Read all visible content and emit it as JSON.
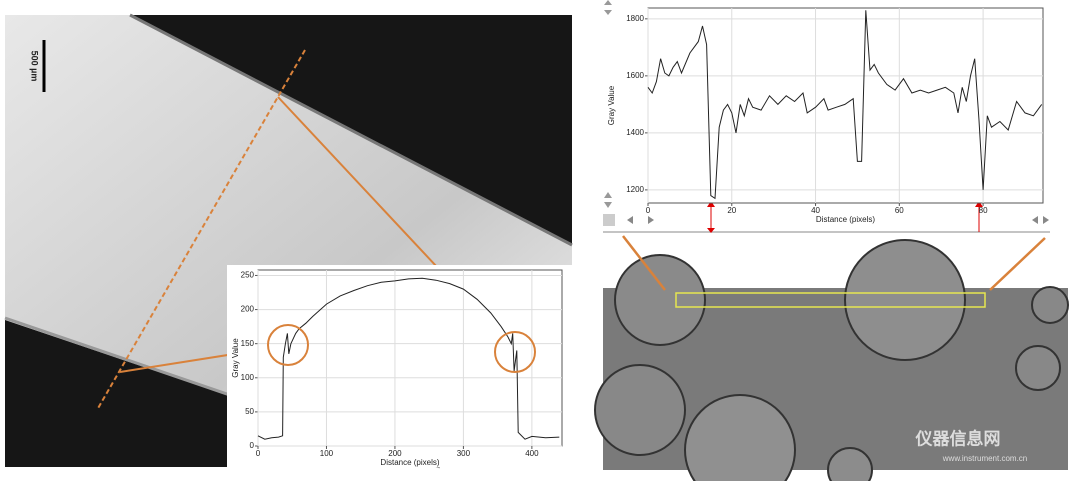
{
  "chart_data": [
    {
      "type": "line",
      "x_label": "Distance (pixels)",
      "y_label": "Gray Value",
      "color": "#222222",
      "grid": true,
      "x": [
        0,
        10,
        20,
        30,
        36,
        37,
        40,
        43,
        45,
        48,
        55,
        60,
        70,
        80,
        100,
        120,
        140,
        160,
        180,
        200,
        220,
        240,
        260,
        280,
        300,
        320,
        340,
        355,
        365,
        370,
        372,
        374,
        378,
        380,
        390,
        400,
        420,
        440
      ],
      "values": [
        15,
        10,
        12,
        13,
        15,
        130,
        150,
        165,
        135,
        150,
        165,
        172,
        180,
        190,
        208,
        220,
        228,
        235,
        240,
        242,
        245,
        246,
        243,
        238,
        230,
        215,
        195,
        175,
        160,
        150,
        165,
        110,
        140,
        20,
        10,
        14,
        12,
        13
      ],
      "xlim": [
        0,
        444
      ],
      "ylim": [
        0,
        258
      ],
      "xticks": [
        0,
        100,
        200,
        300,
        400
      ],
      "yticks": [
        0,
        50,
        100,
        150,
        200,
        250
      ]
    },
    {
      "type": "line",
      "x_label": "Distance (pixels)",
      "y_label": "Gray Value",
      "color": "#222222",
      "grid": true,
      "x": [
        0,
        1,
        2,
        3,
        4,
        5,
        6,
        7,
        8,
        10,
        12,
        13,
        14,
        15,
        16,
        17,
        18,
        19,
        20,
        21,
        22,
        23,
        24,
        25,
        27,
        29,
        31,
        33,
        35,
        37,
        38,
        40,
        42,
        43,
        45,
        47,
        49,
        50,
        51,
        52,
        53,
        54,
        55,
        57,
        59,
        61,
        63,
        65,
        67,
        69,
        71,
        73,
        74,
        75,
        76,
        77,
        78,
        79,
        80,
        81,
        82,
        84,
        86,
        88,
        90,
        92,
        94
      ],
      "values": [
        1560,
        1540,
        1580,
        1660,
        1610,
        1600,
        1630,
        1650,
        1610,
        1680,
        1720,
        1775,
        1710,
        1180,
        1170,
        1420,
        1480,
        1500,
        1470,
        1400,
        1500,
        1460,
        1520,
        1490,
        1480,
        1530,
        1500,
        1530,
        1510,
        1540,
        1470,
        1490,
        1520,
        1480,
        1490,
        1500,
        1520,
        1300,
        1300,
        1830,
        1620,
        1640,
        1610,
        1570,
        1550,
        1590,
        1540,
        1550,
        1540,
        1550,
        1560,
        1540,
        1470,
        1560,
        1510,
        1600,
        1660,
        1450,
        1200,
        1460,
        1420,
        1440,
        1410,
        1510,
        1470,
        1460,
        1500
      ],
      "xlim": [
        0,
        94.3
      ],
      "ylim": [
        1154,
        1838
      ],
      "xticks": [
        0,
        20,
        40,
        60,
        80
      ],
      "yticks": [
        1200,
        1400,
        1600,
        1800
      ]
    }
  ],
  "scale_bar": "500 µm",
  "watermark": {
    "name": "仪器信息网",
    "url": "www.instrument.com.cn"
  }
}
